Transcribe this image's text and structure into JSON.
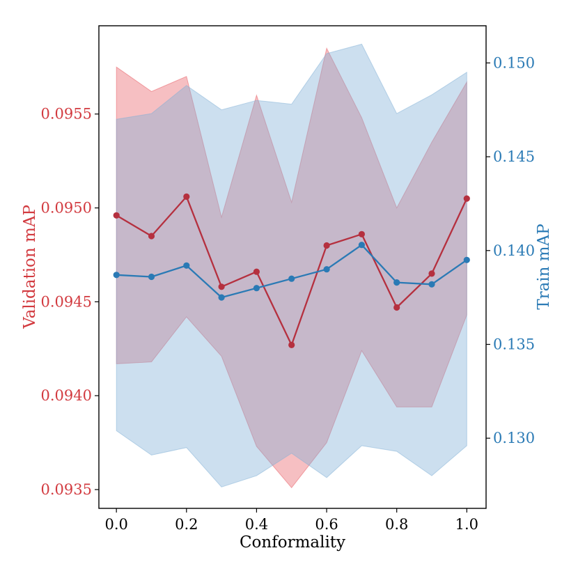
{
  "chart_data": {
    "type": "line",
    "xlabel": "Conformality",
    "x": [
      0.0,
      0.1,
      0.2,
      0.3,
      0.4,
      0.5,
      0.6,
      0.7,
      0.8,
      0.9,
      1.0
    ],
    "xlim": [
      -0.05,
      1.055
    ],
    "xticks": [
      0.0,
      0.2,
      0.4,
      0.6,
      0.8,
      1.0
    ],
    "xtick_labels": [
      "0.0",
      "0.2",
      "0.4",
      "0.6",
      "0.8",
      "1.0"
    ],
    "series": [
      {
        "name": "Validation mAP",
        "axis": "left",
        "color": "#b5303f",
        "band_color": "#e8585f",
        "values": [
          0.09496,
          0.09485,
          0.09506,
          0.09458,
          0.09466,
          0.09427,
          0.0948,
          0.09486,
          0.09447,
          0.09465,
          0.09505
        ],
        "upper": [
          0.09575,
          0.09562,
          0.0957,
          0.09495,
          0.0956,
          0.09503,
          0.09585,
          0.09548,
          0.095,
          0.09535,
          0.09567
        ],
        "lower": [
          0.09417,
          0.09418,
          0.09442,
          0.09421,
          0.09373,
          0.09351,
          0.09375,
          0.09424,
          0.09394,
          0.09394,
          0.09443
        ]
      },
      {
        "name": "Train mAP",
        "axis": "right",
        "color": "#2a7ab5",
        "band_color": "#7fb0d6",
        "values": [
          0.1387,
          0.1386,
          0.1392,
          0.1375,
          0.138,
          0.1385,
          0.139,
          0.1403,
          0.1383,
          0.1382,
          0.1395
        ],
        "upper": [
          0.147,
          0.1473,
          0.1488,
          0.1475,
          0.148,
          0.1478,
          0.1505,
          0.151,
          0.1473,
          0.1483,
          0.1495
        ],
        "lower": [
          0.1304,
          0.1291,
          0.1295,
          0.1274,
          0.128,
          0.1292,
          0.1279,
          0.1296,
          0.1293,
          0.128,
          0.1296
        ]
      }
    ],
    "left_axis": {
      "label": "Validation mAP",
      "color": "#d23a3f",
      "ylim": [
        0.0934,
        0.09597
      ],
      "ticks": [
        0.0935,
        0.094,
        0.0945,
        0.095,
        0.0955
      ],
      "tick_labels": [
        "0.0935",
        "0.0940",
        "0.0945",
        "0.0950",
        "0.0955"
      ]
    },
    "right_axis": {
      "label": "Train mAP",
      "color": "#2a7ab5",
      "ylim": [
        0.12626,
        0.15198
      ],
      "ticks": [
        0.13,
        0.135,
        0.14,
        0.145,
        0.15
      ],
      "tick_labels": [
        "0.130",
        "0.135",
        "0.140",
        "0.145",
        "0.150"
      ]
    },
    "grid": false
  }
}
